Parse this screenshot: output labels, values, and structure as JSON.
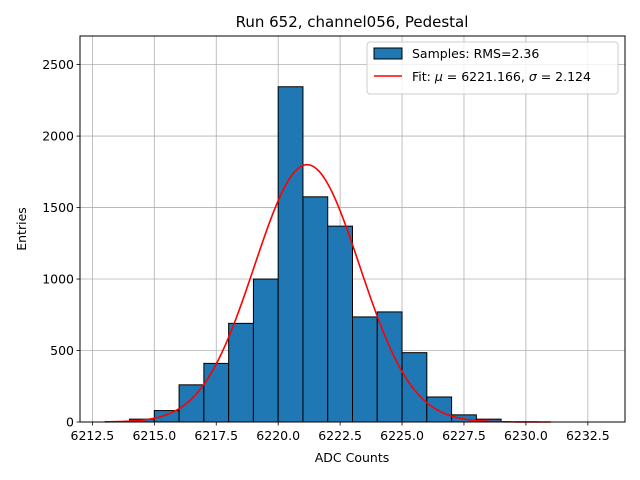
{
  "chart_data": {
    "type": "bar",
    "title": "Run 652, channel056, Pedestal",
    "xlabel": "ADC Counts",
    "ylabel": "Entries",
    "xlim": [
      6212.0,
      6234.0
    ],
    "ylim": [
      0,
      2700
    ],
    "grid": true,
    "legend_position": "top-right",
    "x_ticks": [
      6212.5,
      6215.0,
      6217.5,
      6220.0,
      6222.5,
      6225.0,
      6227.5,
      6230.0,
      6232.5
    ],
    "x_tick_labels": [
      "6212.5",
      "6215.0",
      "6217.5",
      "6220.0",
      "6222.5",
      "6225.0",
      "6227.5",
      "6230.0",
      "6232.5"
    ],
    "y_ticks": [
      0,
      500,
      1000,
      1500,
      2000,
      2500
    ],
    "y_tick_labels": [
      "0",
      "500",
      "1000",
      "1500",
      "2000",
      "2500"
    ],
    "histogram": {
      "name": "Samples: RMS=2.36",
      "bin_edges": [
        6214,
        6215,
        6216,
        6217,
        6218,
        6219,
        6220,
        6221,
        6222,
        6223,
        6224,
        6225,
        6226,
        6227,
        6228,
        6229
      ],
      "counts": [
        20,
        80,
        260,
        410,
        690,
        1000,
        2345,
        1575,
        1370,
        735,
        770,
        485,
        175,
        50,
        20
      ],
      "color": "#1f77b4",
      "edge_color": "#000000"
    },
    "fit": {
      "name_prefix": "Fit: ",
      "mu_symbol": "μ",
      "mu_text": " = 6221.166, ",
      "sigma_symbol": "σ",
      "sigma_text": " = 2.124",
      "mu": 6221.166,
      "sigma": 2.124,
      "amplitude": 1800,
      "x_range": [
        6213,
        6231
      ],
      "color": "#ff0000"
    }
  }
}
